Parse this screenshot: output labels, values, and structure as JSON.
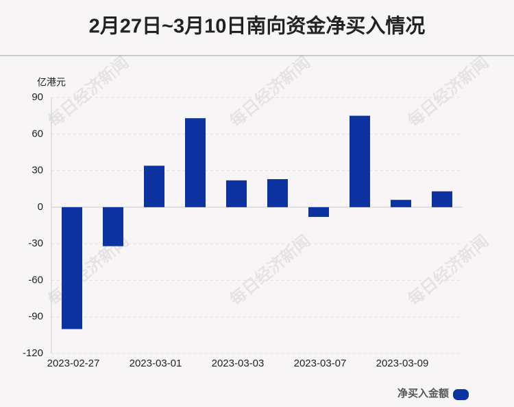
{
  "chart_data": {
    "type": "bar",
    "title": "2月27日~3月10日南向资金净买入情况",
    "y_unit": "亿港元",
    "categories": [
      "2023-02-27",
      null,
      "2023-03-01",
      null,
      "2023-03-03",
      null,
      "2023-03-07",
      null,
      "2023-03-09",
      null
    ],
    "series": [
      {
        "name": "净买入金额",
        "color": "#0d33a0",
        "values": [
          -100,
          -32,
          34,
          73,
          22,
          23,
          -8,
          75,
          6,
          13
        ]
      }
    ],
    "ylim": [
      -120,
      90
    ],
    "yticks": [
      -120,
      -90,
      -60,
      -30,
      0,
      30,
      60,
      90
    ],
    "grid": true,
    "legend": "bottom-right",
    "watermark": "每日经济新闻"
  }
}
